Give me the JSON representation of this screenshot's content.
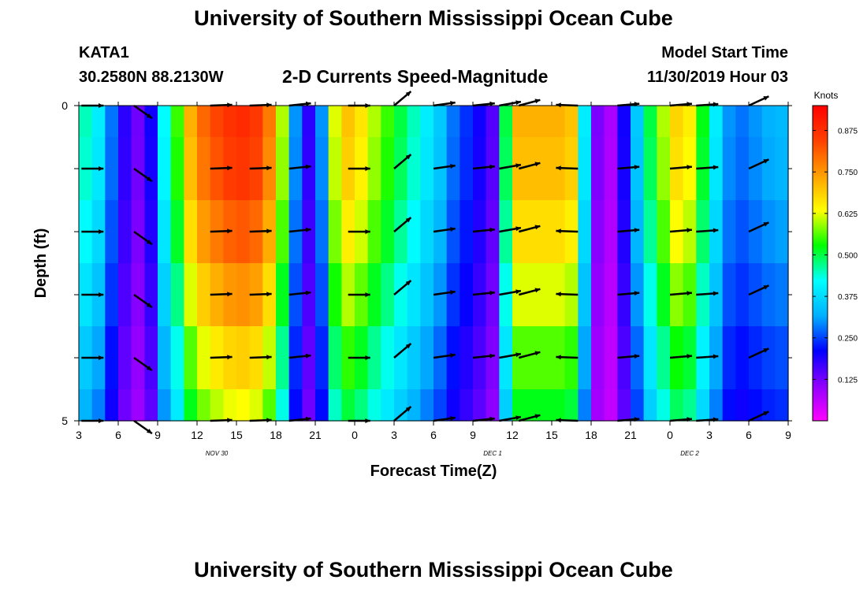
{
  "header": {
    "title": "University of Southern Mississippi Ocean Cube",
    "station": "KATA1",
    "coords": "30.2580N 88.2130W",
    "subtitle": "2-D Currents Speed-Magnitude",
    "model_start_label": "Model Start Time",
    "model_start_value": "11/30/2019 Hour 03"
  },
  "footer": {
    "title": "University of Southern Mississippi Ocean Cube"
  },
  "chart_data": {
    "type": "heatmap",
    "title": "2-D Currents Speed-Magnitude",
    "xlabel": "Forecast Time(Z)",
    "ylabel": "Depth (ft)",
    "x_range_hours": [
      0,
      54
    ],
    "x_tick_labels": [
      "3",
      "6",
      "9",
      "12",
      "15",
      "18",
      "21",
      "0",
      "3",
      "6",
      "9",
      "12",
      "15",
      "18",
      "21",
      "0",
      "3",
      "6",
      "9"
    ],
    "date_labels": [
      {
        "text": "NOV 30",
        "hour": 10.5
      },
      {
        "text": "DEC 1",
        "hour": 31.5
      },
      {
        "text": "DEC 2",
        "hour": 46.5
      }
    ],
    "y_range": [
      0,
      5
    ],
    "y_tick_labels": [
      "0",
      "5"
    ],
    "colorbar": {
      "units": "Knots",
      "min": 0.0,
      "max": 0.95,
      "tick_values": [
        0.125,
        0.25,
        0.375,
        0.5,
        0.625,
        0.75,
        0.875
      ],
      "tick_labels": [
        "0.125",
        "0.250",
        "0.375",
        "0.500",
        "0.625",
        "0.750",
        "0.875"
      ],
      "colors": [
        "#ff00ff",
        "#9000ff",
        "#0000ff",
        "#00b0ff",
        "#00ffff",
        "#00ff00",
        "#ffff00",
        "#ffa000",
        "#ff4000",
        "#ff0000"
      ]
    },
    "depth_bins": 5,
    "speed_knots_by_hour": [
      0.45,
      0.4,
      0.28,
      0.18,
      0.13,
      0.2,
      0.42,
      0.55,
      0.72,
      0.8,
      0.84,
      0.87,
      0.88,
      0.86,
      0.78,
      0.6,
      0.3,
      0.18,
      0.3,
      0.62,
      0.7,
      0.66,
      0.6,
      0.55,
      0.5,
      0.45,
      0.4,
      0.35,
      0.28,
      0.24,
      0.2,
      0.15,
      0.5,
      0.72,
      0.72,
      0.72,
      0.72,
      0.7,
      0.4,
      0.12,
      0.08,
      0.2,
      0.35,
      0.5,
      0.6,
      0.68,
      0.65,
      0.52,
      0.4,
      0.3,
      0.28,
      0.3,
      0.32,
      0.33
    ],
    "depth_factors": [
      1.0,
      0.98,
      0.93,
      0.86,
      0.78,
      0.72
    ],
    "vector_rows_depth": [
      0,
      1,
      2,
      3,
      4,
      5
    ],
    "vector_hours": [
      0.2,
      4.2,
      10,
      13,
      16,
      20.5,
      24,
      27,
      30,
      32,
      33.5,
      38,
      41,
      45,
      47,
      51
    ],
    "vector_angles_deg": [
      0,
      -35,
      2,
      2,
      6,
      0,
      40,
      8,
      6,
      10,
      15,
      178,
      5,
      5,
      4,
      25
    ],
    "vector_lengths_knots": [
      0.6,
      0.6,
      0.6,
      0.6,
      0.6,
      0.6,
      0.6,
      0.6,
      0.6,
      0.6,
      0.6,
      0.6,
      0.6,
      0.6,
      0.6,
      0.6
    ]
  }
}
